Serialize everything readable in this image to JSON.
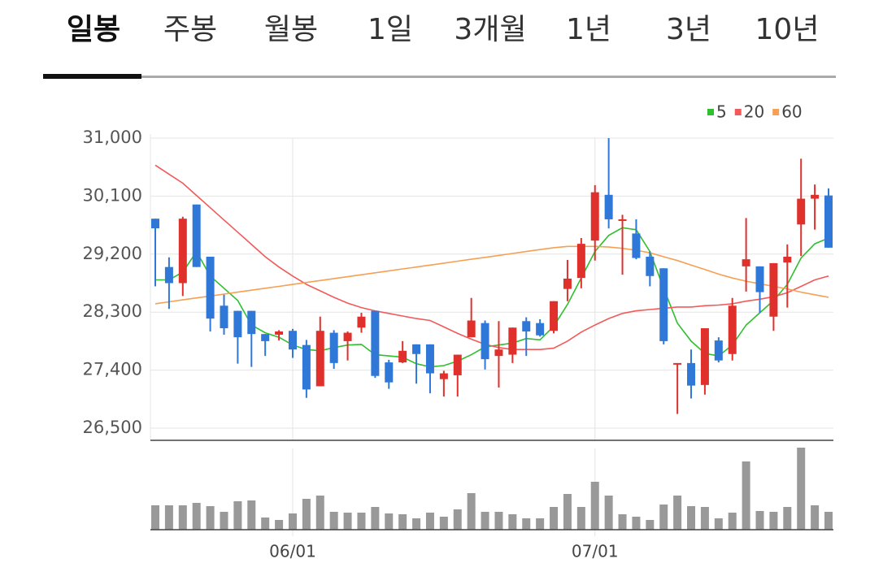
{
  "tabs": [
    "일봉",
    "주봉",
    "월봉",
    "1일",
    "3개월",
    "1년",
    "3년",
    "10년"
  ],
  "selected": 0,
  "chart_data": {
    "type": "candlestick",
    "categories": [
      null,
      null,
      null,
      null,
      null,
      null,
      null,
      null,
      null,
      null,
      "06/01",
      null,
      null,
      null,
      null,
      null,
      null,
      null,
      null,
      null,
      null,
      null,
      null,
      null,
      null,
      null,
      null,
      null,
      null,
      null,
      null,
      null,
      "07/01",
      null,
      null,
      null,
      null,
      null,
      null,
      null,
      null,
      null,
      null,
      null,
      null,
      null,
      null,
      null,
      null,
      null
    ],
    "open": [
      29750,
      29000,
      28750,
      29970,
      29160,
      28400,
      28320,
      28320,
      27960,
      27950,
      28010,
      27790,
      27150,
      27980,
      27850,
      28060,
      28320,
      27520,
      27520,
      27800,
      27800,
      27260,
      27320,
      27910,
      28130,
      27620,
      27640,
      28160,
      28130,
      28010,
      28660,
      28830,
      29410,
      30120,
      29720,
      29520,
      29160,
      28980,
      27500,
      27510,
      27170,
      27860,
      27650,
      29010,
      29010,
      28230,
      29070,
      29660,
      30060,
      30110
    ],
    "high": [
      29750,
      29150,
      29780,
      29970,
      29160,
      28570,
      28320,
      28320,
      27960,
      28020,
      28040,
      27870,
      28230,
      28020,
      28000,
      28290,
      28320,
      27560,
      27850,
      27800,
      27800,
      27390,
      27640,
      28520,
      28170,
      28160,
      28060,
      28220,
      28190,
      28470,
      29110,
      29450,
      30270,
      31000,
      29810,
      29740,
      29240,
      28980,
      27500,
      27720,
      28050,
      27910,
      28520,
      29760,
      29010,
      29060,
      29350,
      30680,
      30280,
      30220
    ],
    "low": [
      28700,
      28350,
      28550,
      29000,
      28000,
      27950,
      27500,
      27450,
      27620,
      27860,
      27590,
      26970,
      27150,
      27420,
      27550,
      27980,
      27280,
      27110,
      27510,
      27190,
      27040,
      26990,
      26990,
      27910,
      27410,
      27130,
      27510,
      27620,
      27920,
      27970,
      28470,
      28670,
      29100,
      29600,
      28880,
      29120,
      28700,
      27800,
      26720,
      26960,
      27020,
      27520,
      27550,
      28620,
      28290,
      28010,
      28370,
      29170,
      29580,
      29300
    ],
    "close": [
      29600,
      28750,
      29750,
      29000,
      28200,
      28050,
      27910,
      27960,
      27850,
      28000,
      27720,
      27100,
      28010,
      27510,
      27980,
      28230,
      27310,
      27210,
      27700,
      27650,
      27350,
      27350,
      27640,
      28170,
      27570,
      27720,
      28060,
      28000,
      27940,
      28470,
      28820,
      29360,
      30160,
      29740,
      29740,
      29140,
      28860,
      27850,
      27510,
      27160,
      28050,
      27550,
      28400,
      29120,
      28610,
      29060,
      29160,
      30060,
      30120,
      29300
    ],
    "series": [
      {
        "name": "5",
        "color": "#2fbf2f",
        "values": [
          28800,
          28800,
          28920,
          29240,
          28860,
          28670,
          28480,
          28100,
          27980,
          27910,
          27790,
          27720,
          27700,
          27750,
          27790,
          27800,
          27640,
          27620,
          27600,
          27500,
          27450,
          27470,
          27540,
          27640,
          27760,
          27790,
          27820,
          27890,
          27870,
          28080,
          28420,
          28830,
          29240,
          29490,
          29610,
          29580,
          29240,
          28670,
          28130,
          27850,
          27660,
          27620,
          27790,
          28100,
          28290,
          28480,
          28730,
          29140,
          29360,
          29450
        ]
      },
      {
        "name": "20",
        "color": "#f25a5a",
        "values": [
          30580,
          30440,
          30300,
          30110,
          29920,
          29730,
          29540,
          29350,
          29160,
          29000,
          28860,
          28730,
          28630,
          28530,
          28440,
          28370,
          28320,
          28280,
          28240,
          28200,
          28170,
          28070,
          27970,
          27880,
          27800,
          27750,
          27720,
          27720,
          27720,
          27740,
          27850,
          27990,
          28100,
          28200,
          28280,
          28320,
          28340,
          28360,
          28380,
          28380,
          28400,
          28410,
          28430,
          28470,
          28500,
          28540,
          28600,
          28700,
          28800,
          28860
        ]
      },
      {
        "name": "60",
        "color": "#f5a054",
        "values": [
          28430,
          28460,
          28490,
          28520,
          28550,
          28580,
          28610,
          28640,
          28670,
          28700,
          28730,
          28760,
          28790,
          28820,
          28850,
          28880,
          28910,
          28940,
          28970,
          29000,
          29030,
          29060,
          29090,
          29120,
          29150,
          29180,
          29210,
          29240,
          29270,
          29300,
          29320,
          29320,
          29320,
          29310,
          29290,
          29260,
          29220,
          29160,
          29100,
          29030,
          28960,
          28890,
          28830,
          28780,
          28740,
          28700,
          28660,
          28610,
          28570,
          28530
        ]
      }
    ],
    "volume": [
      30,
      30,
      30,
      33,
      29,
      22,
      35,
      36,
      15,
      12,
      20,
      38,
      42,
      22,
      21,
      21,
      28,
      20,
      19,
      14,
      21,
      16,
      25,
      45,
      22,
      22,
      19,
      14,
      14,
      28,
      44,
      28,
      59,
      42,
      19,
      16,
      12,
      31,
      42,
      29,
      28,
      14,
      21,
      84,
      23,
      22,
      28,
      101,
      30,
      22
    ],
    "up_color": "#e0302c",
    "down_color": "#2f78d8",
    "volume_color": "#999999",
    "ylim": [
      26500,
      31000
    ],
    "yticks": [
      {
        "value": 26500,
        "label": "26,500"
      },
      {
        "value": 27400,
        "label": "27,400"
      },
      {
        "value": 28300,
        "label": "28,300"
      },
      {
        "value": 29200,
        "label": "29,200"
      },
      {
        "value": 30100,
        "label": "30,100"
      },
      {
        "value": 31000,
        "label": "31,000"
      }
    ],
    "grid": true
  }
}
